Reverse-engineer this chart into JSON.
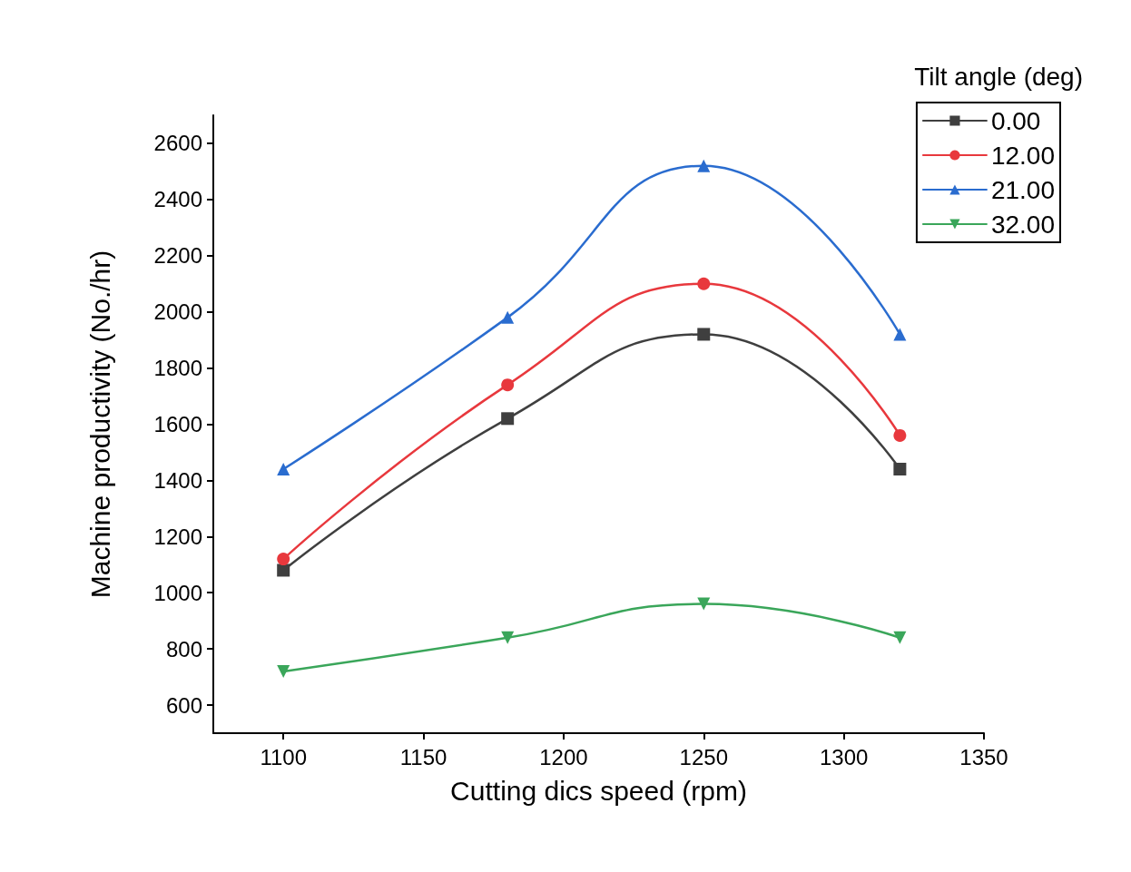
{
  "chart_data": {
    "type": "line",
    "xlabel": "Cutting dics speed (rpm)",
    "ylabel": "Machine productivity (No./hr)",
    "legend_title": "Tilt angle (deg)",
    "x": [
      1100,
      1180,
      1250,
      1320
    ],
    "series": [
      {
        "name": "0.00",
        "color": "#3f3f3f",
        "marker": "square",
        "values": [
          1080,
          1620,
          1920,
          1440
        ]
      },
      {
        "name": "12.00",
        "color": "#e8383d",
        "marker": "circle",
        "values": [
          1120,
          1740,
          2100,
          1560
        ]
      },
      {
        "name": "21.00",
        "color": "#2a6ccf",
        "marker": "triangle",
        "values": [
          1440,
          1980,
          2520,
          1920
        ]
      },
      {
        "name": "32.00",
        "color": "#3aa65a",
        "marker": "triangle-down",
        "values": [
          720,
          840,
          960,
          840
        ]
      }
    ],
    "xlim": [
      1075,
      1350
    ],
    "xticks": [
      1100,
      1150,
      1200,
      1250,
      1300,
      1350
    ],
    "ylim": [
      500,
      2700
    ],
    "yticks": [
      600,
      800,
      1000,
      1200,
      1400,
      1600,
      1800,
      2000,
      2200,
      2400,
      2600
    ],
    "grid": false,
    "legend": "top right",
    "line_style": "solid"
  }
}
